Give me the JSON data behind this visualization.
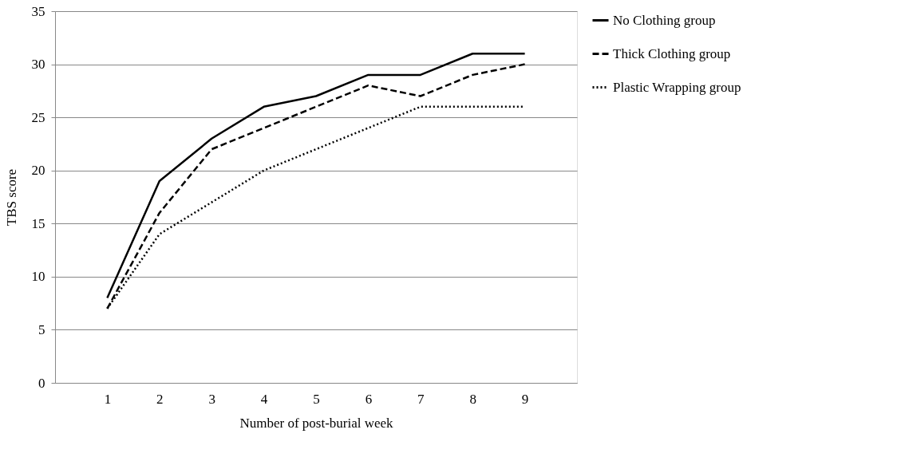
{
  "chart_data": {
    "type": "line",
    "xlabel": "Number of post-burial week",
    "ylabel": "TBS score",
    "x": [
      1,
      2,
      3,
      4,
      5,
      6,
      7,
      8,
      9
    ],
    "series": [
      {
        "name": "No Clothing group",
        "color": "#000000",
        "line_style": "solid",
        "values": [
          8,
          19,
          23,
          26,
          27,
          29,
          29,
          31,
          31
        ]
      },
      {
        "name": "Thick Clothing group",
        "color": "#000000",
        "line_style": "dashed",
        "values": [
          7,
          16,
          22,
          24,
          26,
          28,
          27,
          29,
          30
        ]
      },
      {
        "name": "Plastic Wrapping group",
        "color": "#000000",
        "line_style": "dotted",
        "values": [
          7,
          14,
          17,
          20,
          22,
          24,
          26,
          26,
          26
        ]
      }
    ],
    "xlim": [
      0,
      10
    ],
    "xticks": [
      1,
      2,
      3,
      4,
      5,
      6,
      7,
      8,
      9
    ],
    "ylim": [
      0,
      35
    ],
    "yticks": [
      0,
      5,
      10,
      15,
      20,
      25,
      30,
      35
    ],
    "grid": "y",
    "legend": "right",
    "marker": "none"
  }
}
